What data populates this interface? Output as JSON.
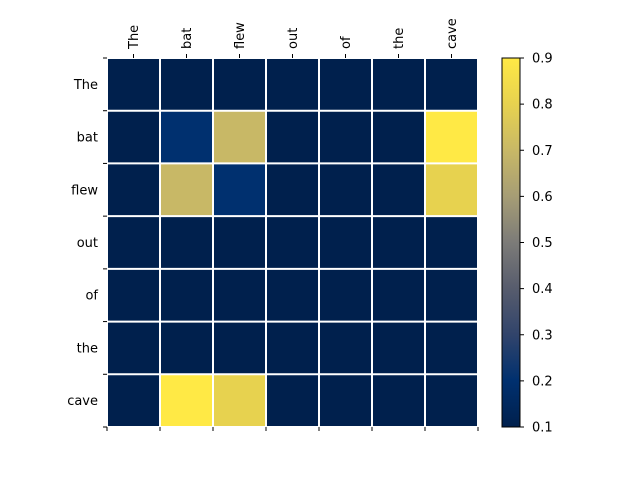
{
  "chart_data": {
    "type": "heatmap",
    "title": "",
    "xlabel": "",
    "ylabel": "",
    "x_categories": [
      "The",
      "bat",
      "flew",
      "out",
      "of",
      "the",
      "cave"
    ],
    "y_categories": [
      "The",
      "bat",
      "flew",
      "out",
      "of",
      "the",
      "cave"
    ],
    "values": [
      [
        0.1,
        0.1,
        0.1,
        0.1,
        0.1,
        0.1,
        0.1
      ],
      [
        0.1,
        0.2,
        0.7,
        0.1,
        0.1,
        0.1,
        0.9
      ],
      [
        0.1,
        0.7,
        0.2,
        0.1,
        0.1,
        0.1,
        0.8
      ],
      [
        0.1,
        0.1,
        0.1,
        0.1,
        0.1,
        0.1,
        0.1
      ],
      [
        0.1,
        0.1,
        0.1,
        0.1,
        0.1,
        0.1,
        0.1
      ],
      [
        0.1,
        0.1,
        0.1,
        0.1,
        0.1,
        0.1,
        0.1
      ],
      [
        0.1,
        0.9,
        0.8,
        0.1,
        0.1,
        0.1,
        0.1
      ]
    ],
    "colormap": "cividis",
    "colorbar": {
      "range": [
        0.1,
        0.9
      ],
      "ticks": [
        "0.1",
        "0.2",
        "0.3",
        "0.4",
        "0.5",
        "0.6",
        "0.7",
        "0.8",
        "0.9"
      ]
    },
    "grid": true,
    "grid_color": "#ffffff",
    "x_tick_position": "top"
  }
}
